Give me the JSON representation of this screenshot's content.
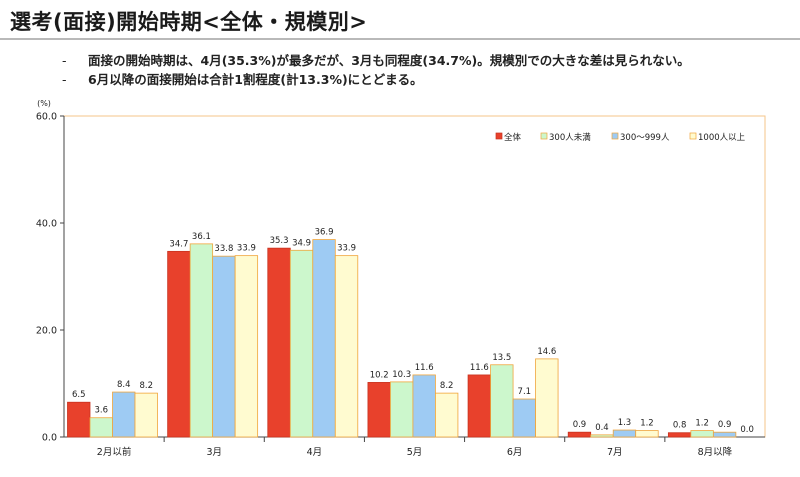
{
  "header": {
    "title": "選考(面接)開始時期<全体・規模別>"
  },
  "notes": [
    "面接の開始時期は、4月(35.3%)が最多だが、3月も同程度(34.7%)。規模別での大きな差は見られない。",
    "6月以降の面接開始は合計1割程度(計13.3%)にとどまる。"
  ],
  "chart_data": {
    "type": "bar",
    "yunit": "(%)",
    "ylim": [
      0,
      60
    ],
    "yticks": [
      "0.0",
      "20.0",
      "40.0",
      "60.0"
    ],
    "grid": false,
    "legend_position": "top-right",
    "categories": [
      "2月以前",
      "3月",
      "4月",
      "5月",
      "6月",
      "7月",
      "8月以降"
    ],
    "series": [
      {
        "name": "全体",
        "color": "#e8412c",
        "values": [
          6.5,
          34.7,
          35.3,
          10.2,
          11.6,
          0.9,
          0.8
        ]
      },
      {
        "name": "300人未満",
        "color": "#ccf7cc",
        "values": [
          3.6,
          36.1,
          34.9,
          10.3,
          13.5,
          0.4,
          1.2
        ]
      },
      {
        "name": "300〜999人",
        "color": "#9ecbf3",
        "values": [
          8.4,
          33.8,
          36.9,
          11.6,
          7.1,
          1.3,
          0.9
        ]
      },
      {
        "name": "1000人以上",
        "color": "#fffbd0",
        "values": [
          8.2,
          33.9,
          33.9,
          8.2,
          14.6,
          1.2,
          0.0
        ]
      }
    ]
  }
}
